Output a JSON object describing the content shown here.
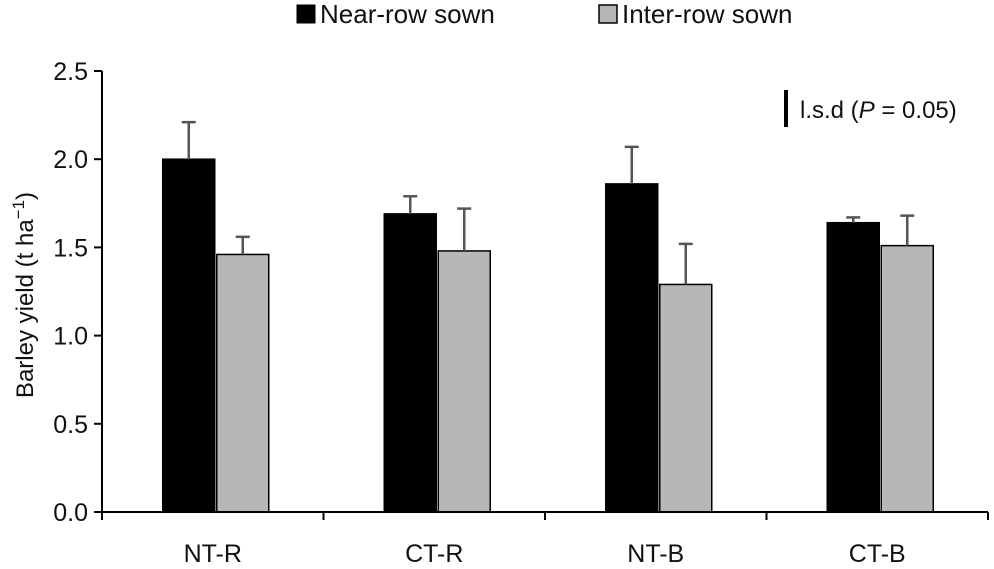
{
  "colors": {
    "near_row": "#000000",
    "inter_row": "#b7b7b7",
    "bar_stroke": "#000000",
    "error_bar": "#555555",
    "axis": "#000000"
  },
  "chart_data": {
    "type": "bar",
    "categories": [
      "NT-R",
      "CT-R",
      "NT-B",
      "CT-B"
    ],
    "series": [
      {
        "name": "Near-row sown",
        "values": [
          2.0,
          1.69,
          1.86,
          1.64
        ],
        "error": [
          0.21,
          0.1,
          0.21,
          0.03
        ]
      },
      {
        "name": "Inter-row sown",
        "values": [
          1.46,
          1.48,
          1.29,
          1.51
        ],
        "error": [
          0.1,
          0.24,
          0.23,
          0.17
        ]
      }
    ],
    "ylabel": "Barley yield (t ha",
    "ylabel_superscript": "−1",
    "ylabel_close": ")",
    "ylim": [
      0,
      2.5
    ],
    "yticks": [
      "0.0",
      "0.5",
      "1.0",
      "1.5",
      "2.0",
      "2.5"
    ],
    "ytick_values": [
      0,
      0.5,
      1.0,
      1.5,
      2.0,
      2.5
    ],
    "legend_placement": "top-center",
    "grid": false,
    "lsd": {
      "value": 0.21,
      "label_prefix": "l.s.d (",
      "label_italic": "P",
      "label_suffix": " = 0.05)"
    }
  }
}
